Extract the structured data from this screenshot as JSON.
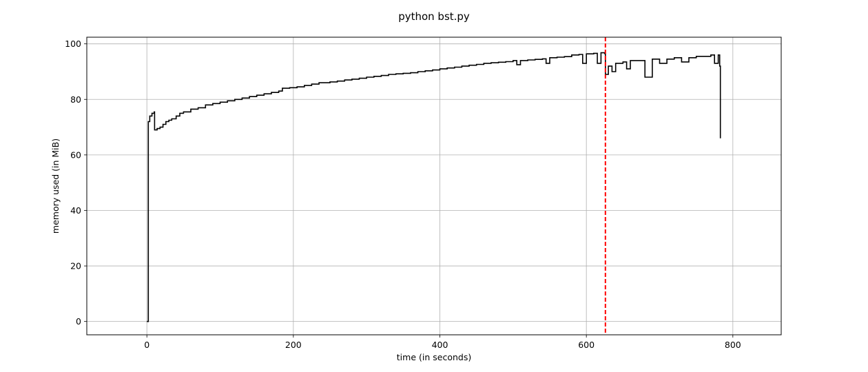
{
  "chart_data": {
    "type": "line",
    "title": "python bst.py",
    "xlabel": "time (in seconds)",
    "ylabel": "memory used (in MiB)",
    "xlim": [
      -82,
      866
    ],
    "ylim": [
      -4.8,
      102.4
    ],
    "xticks": [
      0,
      200,
      400,
      600,
      800
    ],
    "yticks": [
      0,
      20,
      40,
      60,
      80,
      100
    ],
    "grid": true,
    "line_color": "#000000",
    "marker_color": "#ff0000",
    "vline_x": 626,
    "series": [
      {
        "x": [
          0,
          2,
          4,
          7,
          10,
          10.5,
          14,
          18,
          22,
          26,
          30,
          34,
          40,
          45,
          50,
          60,
          70,
          80,
          90,
          100,
          110,
          120,
          130,
          140,
          150,
          160,
          170,
          180,
          185,
          195,
          205,
          215,
          225,
          235,
          250,
          260,
          270,
          280,
          290,
          300,
          310,
          320,
          330,
          340,
          350,
          360,
          370,
          380,
          390,
          400,
          410,
          420,
          430,
          440,
          450,
          460,
          470,
          480,
          490,
          500,
          505,
          510,
          520,
          530,
          540,
          545,
          550,
          560,
          570,
          580,
          590,
          595,
          600,
          610,
          615,
          620,
          625,
          626,
          630,
          635,
          640,
          650,
          655,
          660,
          670,
          680,
          690,
          700,
          710,
          720,
          730,
          740,
          750,
          760,
          770,
          775,
          780,
          782,
          783
        ],
        "y": [
          0,
          72,
          74,
          75,
          75.5,
          69,
          69.5,
          70,
          71,
          72,
          72.5,
          73,
          74,
          75,
          75.5,
          76.5,
          77,
          78,
          78.5,
          79,
          79.5,
          80,
          80.5,
          81,
          81.5,
          82,
          82.5,
          83,
          84,
          84.2,
          84.5,
          85,
          85.5,
          86,
          86.3,
          86.6,
          87,
          87.3,
          87.6,
          88,
          88.3,
          88.6,
          89,
          89.2,
          89.4,
          89.6,
          90,
          90.3,
          90.6,
          91,
          91.3,
          91.6,
          92,
          92.3,
          92.6,
          93,
          93.2,
          93.4,
          93.6,
          94,
          92.5,
          94,
          94.2,
          94.4,
          94.6,
          93,
          95,
          95.2,
          95.4,
          96,
          96.2,
          93,
          96.4,
          96.6,
          93,
          96.8,
          96.5,
          89,
          92,
          90,
          93,
          93.5,
          91,
          94,
          94,
          88,
          94.5,
          93,
          94.5,
          95,
          93.5,
          95,
          95.5,
          95.5,
          96,
          93,
          96,
          92,
          66
        ]
      }
    ]
  }
}
